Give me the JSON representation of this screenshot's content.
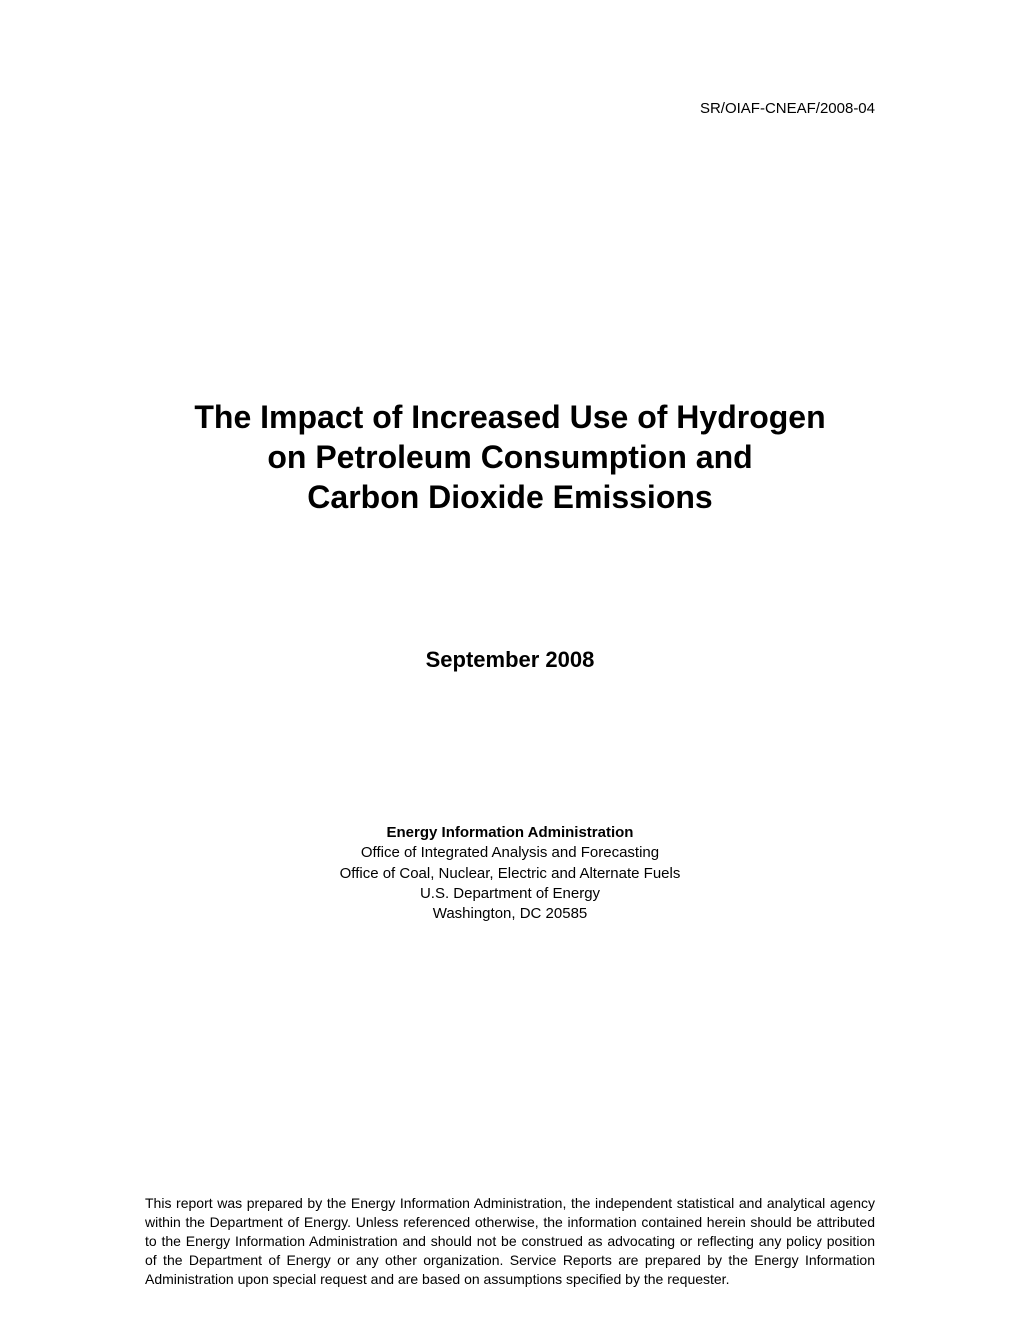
{
  "doc_id": "SR/OIAF-CNEAF/2008-04",
  "title_line1": "The Impact of Increased Use of Hydrogen",
  "title_line2": "on Petroleum Consumption and",
  "title_line3": "Carbon Dioxide Emissions",
  "date": "September 2008",
  "org": {
    "name": "Energy Information Administration",
    "office1": "Office of Integrated Analysis and Forecasting",
    "office2": "Office of Coal, Nuclear, Electric and Alternate Fuels",
    "dept": "U.S. Department of Energy",
    "address": "Washington, DC  20585"
  },
  "disclaimer": "This report was prepared by the Energy Information Administration, the independent statistical and analytical agency within the Department of Energy. Unless referenced otherwise, the information contained herein should be attributed to the Energy Information Administration and should not be construed as advocating or reflecting any policy position of the Department of Energy or any other organization. Service Reports are prepared by the Energy Information Administration upon special request and are based on assumptions specified by the requester."
}
